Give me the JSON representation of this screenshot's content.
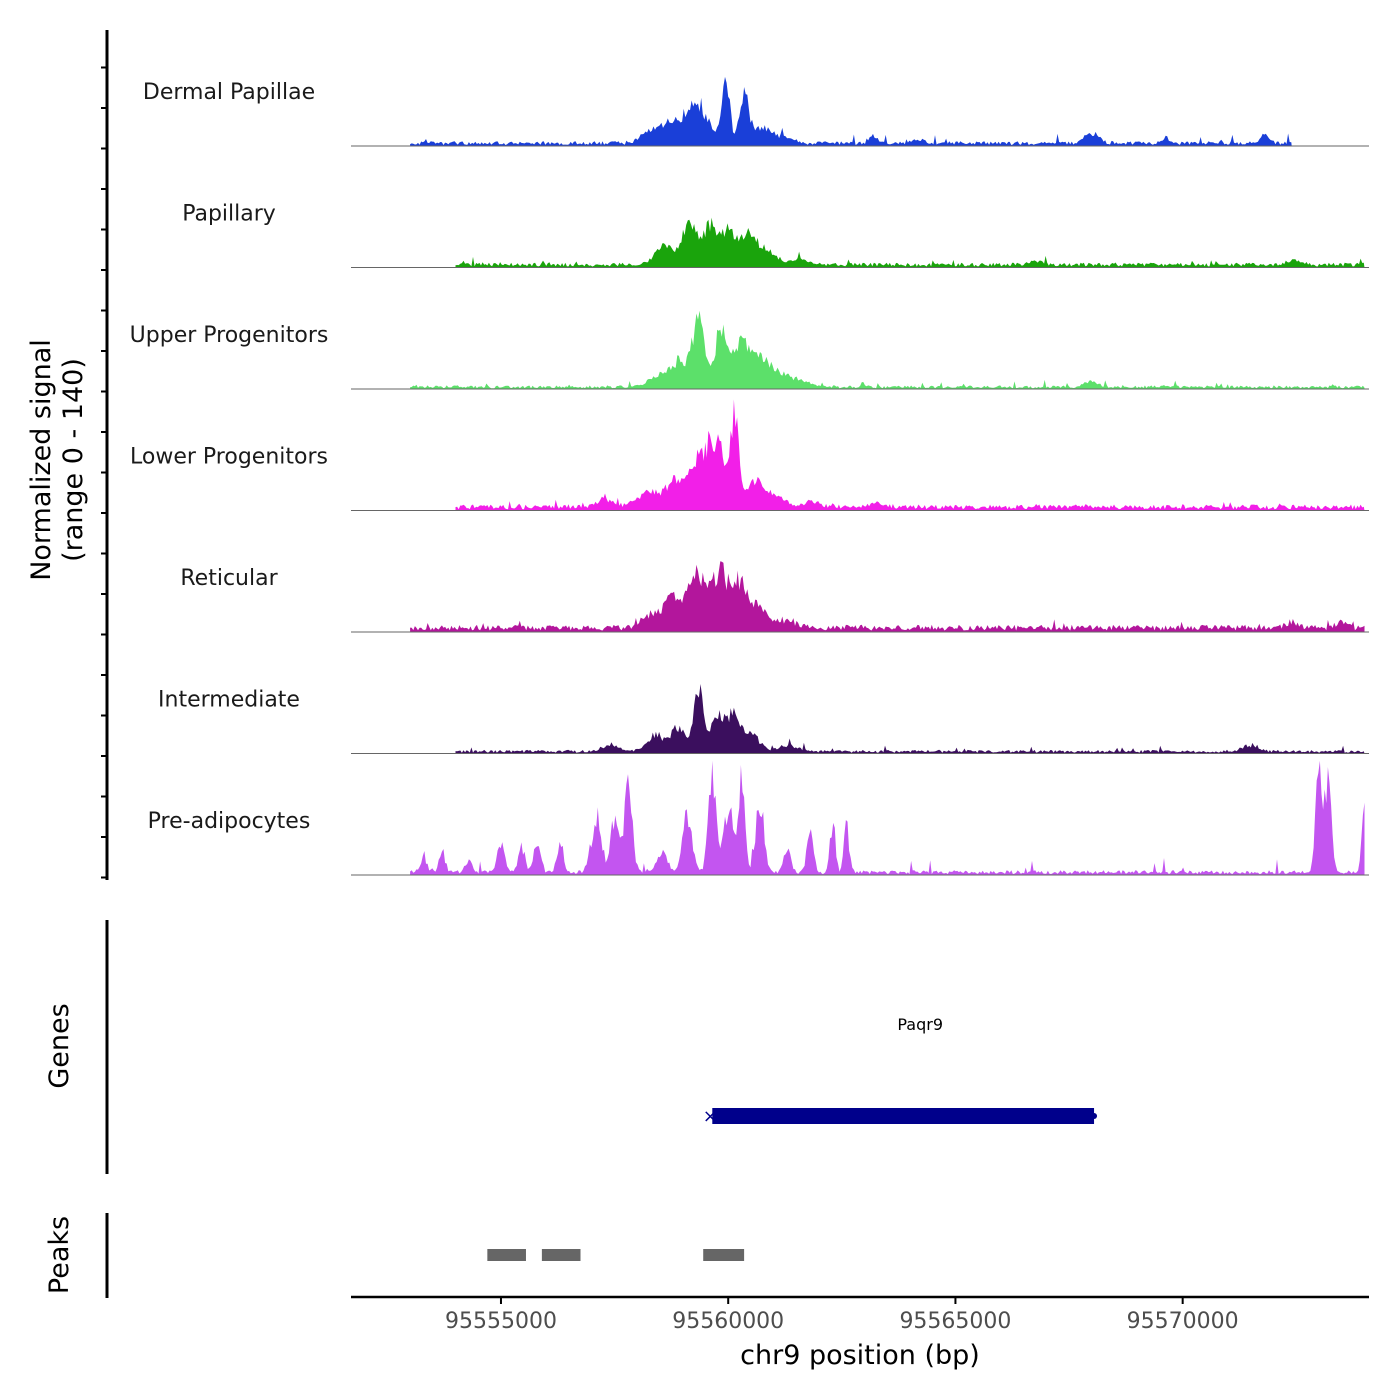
{
  "chart_data": {
    "type": "area",
    "chromosome": "chr9",
    "xlim": [
      95551700,
      95574100
    ],
    "xlabel": "chr9 position (bp)",
    "x_ticks": [
      95555000,
      95560000,
      95565000,
      95570000
    ],
    "x_tick_labels": [
      "95555000",
      "95560000",
      "95565000",
      "95570000"
    ],
    "ylabel_line1": "Normalized signal",
    "ylabel_line2": "(range 0 - 140)",
    "ylim": [
      0,
      140
    ],
    "tracks": [
      {
        "name": "Dermal Papillae",
        "color": "#1a3fd8",
        "bg": 4,
        "noise": 6,
        "start": 95553000,
        "end": 95572400,
        "peaks": [
          [
            95558300,
            300,
            18
          ],
          [
            95558700,
            300,
            26
          ],
          [
            95559100,
            250,
            32
          ],
          [
            95559400,
            300,
            45
          ],
          [
            95559950,
            120,
            100
          ],
          [
            95560350,
            150,
            70
          ],
          [
            95560700,
            250,
            25
          ],
          [
            95561200,
            300,
            12
          ],
          [
            95563200,
            150,
            10
          ],
          [
            95564200,
            150,
            6
          ],
          [
            95568000,
            200,
            16
          ],
          [
            95569600,
            150,
            8
          ],
          [
            95571800,
            150,
            14
          ]
        ]
      },
      {
        "name": "Papillary",
        "color": "#1aa40c",
        "bg": 4,
        "noise": 4,
        "start": 95554000,
        "end": 95574000,
        "peaks": [
          [
            95558600,
            300,
            30
          ],
          [
            95559150,
            220,
            64
          ],
          [
            95559600,
            200,
            60
          ],
          [
            95560000,
            250,
            50
          ],
          [
            95560450,
            250,
            44
          ],
          [
            95560850,
            300,
            20
          ],
          [
            95561600,
            300,
            8
          ],
          [
            95566800,
            200,
            6
          ],
          [
            95572400,
            200,
            7
          ]
        ]
      },
      {
        "name": "Upper Progenitors",
        "color": "#5ce06a",
        "bg": 3,
        "noise": 4,
        "start": 95553000,
        "end": 95574000,
        "peaks": [
          [
            95558400,
            250,
            15
          ],
          [
            95558900,
            300,
            40
          ],
          [
            95559350,
            180,
            110
          ],
          [
            95559850,
            200,
            90
          ],
          [
            95560300,
            250,
            65
          ],
          [
            95560700,
            250,
            45
          ],
          [
            95561100,
            300,
            22
          ],
          [
            95561600,
            300,
            10
          ],
          [
            95568000,
            200,
            8
          ]
        ]
      },
      {
        "name": "Lower Progenitors",
        "color": "#f21fe8",
        "bg": 5,
        "noise": 4,
        "start": 95554000,
        "end": 95574000,
        "peaks": [
          [
            95557300,
            250,
            12
          ],
          [
            95558200,
            300,
            22
          ],
          [
            95558800,
            300,
            40
          ],
          [
            95559400,
            300,
            85
          ],
          [
            95559800,
            250,
            85
          ],
          [
            95560150,
            120,
            125
          ],
          [
            95560550,
            250,
            40
          ],
          [
            95561000,
            300,
            18
          ],
          [
            95561800,
            300,
            8
          ],
          [
            95563300,
            250,
            6
          ]
        ]
      },
      {
        "name": "Reticular",
        "color": "#b3169c",
        "bg": 6,
        "noise": 5,
        "start": 95553000,
        "end": 95574000,
        "peaks": [
          [
            95558300,
            300,
            20
          ],
          [
            95558800,
            300,
            45
          ],
          [
            95559300,
            250,
            85
          ],
          [
            95559800,
            250,
            82
          ],
          [
            95560250,
            250,
            65
          ],
          [
            95560700,
            250,
            30
          ],
          [
            95561300,
            300,
            12
          ],
          [
            95572400,
            200,
            10
          ],
          [
            95573500,
            150,
            10
          ]
        ]
      },
      {
        "name": "Intermediate",
        "color": "#3b0f5e",
        "bg": 3,
        "noise": 4,
        "start": 95554000,
        "end": 95574000,
        "peaks": [
          [
            95557400,
            250,
            10
          ],
          [
            95558400,
            250,
            25
          ],
          [
            95558900,
            250,
            35
          ],
          [
            95559350,
            150,
            90
          ],
          [
            95559750,
            200,
            55
          ],
          [
            95560100,
            200,
            55
          ],
          [
            95560500,
            250,
            30
          ],
          [
            95561300,
            300,
            10
          ],
          [
            95571500,
            250,
            10
          ]
        ]
      },
      {
        "name": "Pre-adipocytes",
        "color": "#c355f0",
        "bg": 4,
        "noise": 9,
        "start": 95553000,
        "end": 95574000,
        "peaks": [
          [
            95553300,
            100,
            25
          ],
          [
            95553700,
            100,
            30
          ],
          [
            95554300,
            100,
            20
          ],
          [
            95555000,
            120,
            45
          ],
          [
            95555450,
            100,
            40
          ],
          [
            95555800,
            100,
            50
          ],
          [
            95556300,
            100,
            45
          ],
          [
            95557100,
            150,
            90
          ],
          [
            95557500,
            120,
            85
          ],
          [
            95557800,
            120,
            148
          ],
          [
            95558550,
            150,
            30
          ],
          [
            95559100,
            150,
            88
          ],
          [
            95559650,
            120,
            148
          ],
          [
            95560000,
            150,
            90
          ],
          [
            95560300,
            100,
            152
          ],
          [
            95560700,
            120,
            110
          ],
          [
            95561300,
            100,
            40
          ],
          [
            95561800,
            100,
            60
          ],
          [
            95562300,
            80,
            80
          ],
          [
            95562600,
            80,
            68
          ],
          [
            95573000,
            100,
            152
          ],
          [
            95573200,
            100,
            140
          ],
          [
            95574000,
            80,
            94
          ]
        ]
      }
    ],
    "genes": [
      {
        "name": "Paqr9",
        "start": 95559650,
        "end": 95568050,
        "strand": "-",
        "color": "#00008b"
      }
    ],
    "peaks_track": [
      {
        "start": 95554700,
        "end": 95555550
      },
      {
        "start": 95555900,
        "end": 95556750
      },
      {
        "start": 95559450,
        "end": 95560350
      }
    ],
    "genes_track_label": "Genes",
    "peaks_track_label": "Peaks"
  },
  "colors": {
    "axis": "#000000",
    "baseline": "#666666",
    "peak_block": "#666666"
  }
}
